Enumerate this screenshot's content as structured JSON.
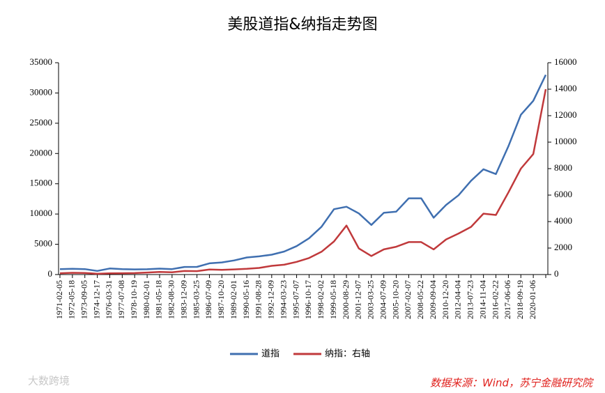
{
  "chart_data": {
    "type": "line",
    "title": "美股道指&纳指走势图",
    "source": "数据来源：Wind，苏宁金融研究院",
    "watermark": "大数跨境",
    "legend": "bottom",
    "grid": false,
    "x": [
      "1971-02-05",
      "1972-05-18",
      "1973-09-05",
      "1974-12-17",
      "1976-03-31",
      "1977-07-08",
      "1978-10-19",
      "1980-02-01",
      "1981-05-18",
      "1982-08-30",
      "1983-12-09",
      "1985-03-25",
      "1986-07-09",
      "1987-10-20",
      "1989-02-01",
      "1990-05-16",
      "1991-08-28",
      "1992-12-09",
      "1994-03-23",
      "1995-07-07",
      "1996-10-17",
      "1998-02-02",
      "1999-05-18",
      "2000-08-29",
      "2001-12-07",
      "2003-03-25",
      "2004-07-09",
      "2005-10-20",
      "2007-02-07",
      "2008-05-22",
      "2009-09-04",
      "2010-12-20",
      "2012-04-04",
      "2013-07-23",
      "2014-11-04",
      "2016-02-22",
      "2017-06-06",
      "2018-09-19",
      "2020-01-06",
      null
    ],
    "series": [
      {
        "name": "道指",
        "color": "#3f6fb0",
        "axis": "y",
        "values": [
          900,
          950,
          900,
          600,
          1000,
          900,
          850,
          870,
          980,
          900,
          1250,
          1270,
          1850,
          2000,
          2340,
          2820,
          3000,
          3280,
          3800,
          4700,
          6000,
          7900,
          10800,
          11200,
          10100,
          8200,
          10200,
          10400,
          12600,
          12600,
          9400,
          11500,
          13100,
          15500,
          17400,
          16600,
          21200,
          26400,
          28700,
          33000
        ]
      },
      {
        "name": "纳指：右轴",
        "color": "#c0393b",
        "axis": "y2",
        "values": [
          100,
          130,
          120,
          60,
          90,
          100,
          110,
          150,
          200,
          170,
          270,
          260,
          380,
          360,
          390,
          430,
          500,
          660,
          740,
          960,
          1250,
          1720,
          2500,
          3700,
          1970,
          1400,
          1900,
          2100,
          2450,
          2450,
          1900,
          2650,
          3100,
          3600,
          4600,
          4500,
          6200,
          8000,
          9100,
          14000
        ]
      }
    ],
    "ylim": [
      0,
      35000
    ],
    "yticks": [
      0,
      5000,
      10000,
      15000,
      20000,
      25000,
      30000,
      35000
    ],
    "y2lim": [
      0,
      16000
    ],
    "y2ticks": [
      0,
      2000,
      4000,
      6000,
      8000,
      10000,
      12000,
      14000,
      16000
    ]
  }
}
